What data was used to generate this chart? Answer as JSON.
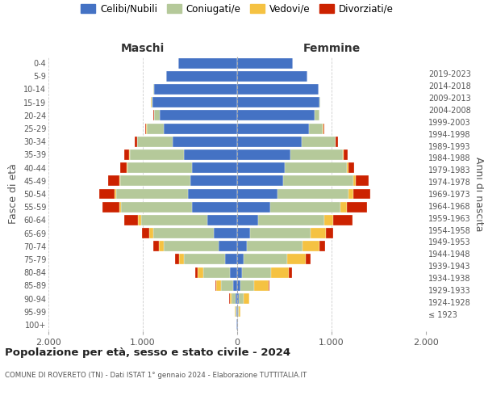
{
  "age_groups": [
    "100+",
    "95-99",
    "90-94",
    "85-89",
    "80-84",
    "75-79",
    "70-74",
    "65-69",
    "60-64",
    "55-59",
    "50-54",
    "45-49",
    "40-44",
    "35-39",
    "30-34",
    "25-29",
    "20-24",
    "15-19",
    "10-14",
    "5-9",
    "0-4"
  ],
  "birth_years": [
    "≤ 1923",
    "1924-1928",
    "1929-1933",
    "1934-1938",
    "1939-1943",
    "1944-1948",
    "1949-1953",
    "1954-1958",
    "1959-1963",
    "1964-1968",
    "1969-1973",
    "1974-1978",
    "1979-1983",
    "1984-1988",
    "1989-1993",
    "1994-1998",
    "1999-2003",
    "2004-2008",
    "2009-2013",
    "2014-2018",
    "2019-2023"
  ],
  "colors": {
    "celibe": "#4472c4",
    "coniugato": "#b5c99a",
    "vedovo": "#f5c242",
    "divorziato": "#cc2200"
  },
  "maschi": {
    "celibe": [
      5,
      10,
      20,
      45,
      80,
      130,
      200,
      250,
      320,
      480,
      520,
      500,
      480,
      560,
      680,
      780,
      820,
      900,
      880,
      750,
      620
    ],
    "coniugato": [
      2,
      10,
      40,
      130,
      280,
      430,
      580,
      640,
      700,
      750,
      760,
      740,
      680,
      580,
      380,
      180,
      60,
      10,
      5,
      5,
      2
    ],
    "vedovo": [
      1,
      5,
      20,
      50,
      60,
      55,
      50,
      40,
      30,
      20,
      15,
      10,
      8,
      5,
      3,
      3,
      2,
      1,
      0,
      0,
      0
    ],
    "divorziato": [
      1,
      2,
      5,
      10,
      25,
      40,
      60,
      80,
      150,
      180,
      170,
      120,
      70,
      50,
      25,
      10,
      5,
      2,
      1,
      0,
      0
    ]
  },
  "femmine": {
    "celibe": [
      5,
      10,
      15,
      30,
      50,
      70,
      100,
      140,
      220,
      350,
      430,
      490,
      500,
      560,
      680,
      760,
      820,
      870,
      860,
      740,
      590
    ],
    "coniugato": [
      2,
      10,
      50,
      150,
      310,
      460,
      590,
      640,
      700,
      740,
      750,
      740,
      660,
      560,
      360,
      150,
      50,
      10,
      5,
      5,
      2
    ],
    "vedovo": [
      3,
      10,
      60,
      150,
      190,
      200,
      180,
      160,
      100,
      70,
      50,
      30,
      20,
      10,
      5,
      3,
      2,
      1,
      0,
      0,
      0
    ],
    "divorziato": [
      1,
      2,
      5,
      15,
      30,
      50,
      60,
      80,
      200,
      220,
      180,
      130,
      60,
      45,
      20,
      8,
      3,
      1,
      1,
      0,
      0
    ]
  },
  "xlim": 2000,
  "xticks": [
    -2000,
    -1000,
    0,
    1000,
    2000
  ],
  "xticklabels": [
    "2.000",
    "1.000",
    "0",
    "1.000",
    "2.000"
  ],
  "title": "Popolazione per età, sesso e stato civile - 2024",
  "subtitle": "COMUNE DI ROVERETO (TN) - Dati ISTAT 1° gennaio 2024 - Elaborazione TUTTITALIA.IT",
  "ylabel_left": "Fasce di età",
  "ylabel_right": "Anni di nascita",
  "xlabel_maschi": "Maschi",
  "xlabel_femmine": "Femmine",
  "legend_labels": [
    "Celibi/Nubili",
    "Coniugati/e",
    "Vedovi/e",
    "Divorziati/e"
  ],
  "bg_color": "#ffffff",
  "grid_color": "#cccccc"
}
